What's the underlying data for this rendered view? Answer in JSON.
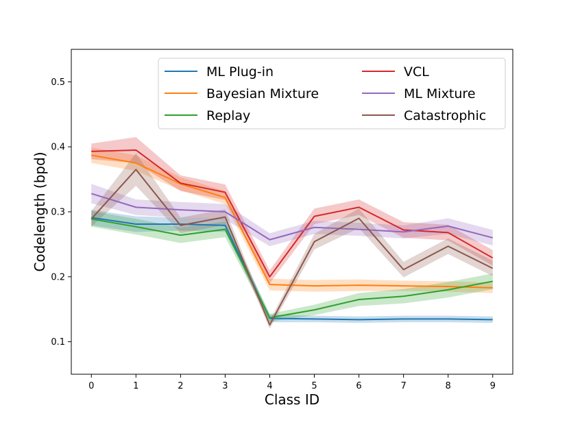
{
  "chart_data": {
    "type": "line",
    "xlabel": "Class ID",
    "ylabel": "Codelength (bpd)",
    "x": [
      0,
      1,
      2,
      3,
      4,
      5,
      6,
      7,
      8,
      9
    ],
    "xticks": [
      "0",
      "1",
      "2",
      "3",
      "4",
      "5",
      "6",
      "7",
      "8",
      "9"
    ],
    "yticks": [
      "0.1",
      "0.2",
      "0.3",
      "0.4",
      "0.5"
    ],
    "xlim": [
      -0.45,
      9.45
    ],
    "ylim": [
      0.05,
      0.55
    ],
    "legend_position": "top-right",
    "series": [
      {
        "name": "ML Plug-in",
        "color": "#1f77b4",
        "values": [
          0.291,
          0.281,
          0.281,
          0.279,
          0.136,
          0.135,
          0.134,
          0.135,
          0.135,
          0.134
        ],
        "band": [
          0.012,
          0.012,
          0.01,
          0.01,
          0.006,
          0.005,
          0.005,
          0.005,
          0.005,
          0.005
        ]
      },
      {
        "name": "Bayesian Mixture",
        "color": "#ff7f0e",
        "values": [
          0.387,
          0.375,
          0.343,
          0.322,
          0.188,
          0.186,
          0.187,
          0.186,
          0.185,
          0.183
        ],
        "band": [
          0.012,
          0.012,
          0.01,
          0.01,
          0.009,
          0.009,
          0.009,
          0.008,
          0.008,
          0.008
        ]
      },
      {
        "name": "Replay",
        "color": "#2ca02c",
        "values": [
          0.289,
          0.277,
          0.264,
          0.273,
          0.137,
          0.149,
          0.165,
          0.17,
          0.18,
          0.193
        ],
        "band": [
          0.012,
          0.012,
          0.012,
          0.012,
          0.006,
          0.008,
          0.01,
          0.011,
          0.012,
          0.012
        ]
      },
      {
        "name": "VCL",
        "color": "#d62728",
        "values": [
          0.393,
          0.395,
          0.344,
          0.33,
          0.2,
          0.293,
          0.307,
          0.272,
          0.268,
          0.229
        ],
        "band": [
          0.012,
          0.02,
          0.012,
          0.012,
          0.01,
          0.012,
          0.012,
          0.012,
          0.012,
          0.012
        ]
      },
      {
        "name": "ML Mixture",
        "color": "#9467bd",
        "values": [
          0.328,
          0.307,
          0.303,
          0.3,
          0.257,
          0.276,
          0.273,
          0.269,
          0.278,
          0.26
        ],
        "band": [
          0.015,
          0.012,
          0.012,
          0.012,
          0.01,
          0.01,
          0.01,
          0.01,
          0.012,
          0.012
        ]
      },
      {
        "name": "Catastrophic",
        "color": "#8c564b",
        "values": [
          0.289,
          0.365,
          0.279,
          0.292,
          0.126,
          0.254,
          0.29,
          0.211,
          0.247,
          0.213
        ],
        "band": [
          0.012,
          0.025,
          0.012,
          0.012,
          0.006,
          0.012,
          0.015,
          0.012,
          0.012,
          0.012
        ]
      }
    ]
  }
}
